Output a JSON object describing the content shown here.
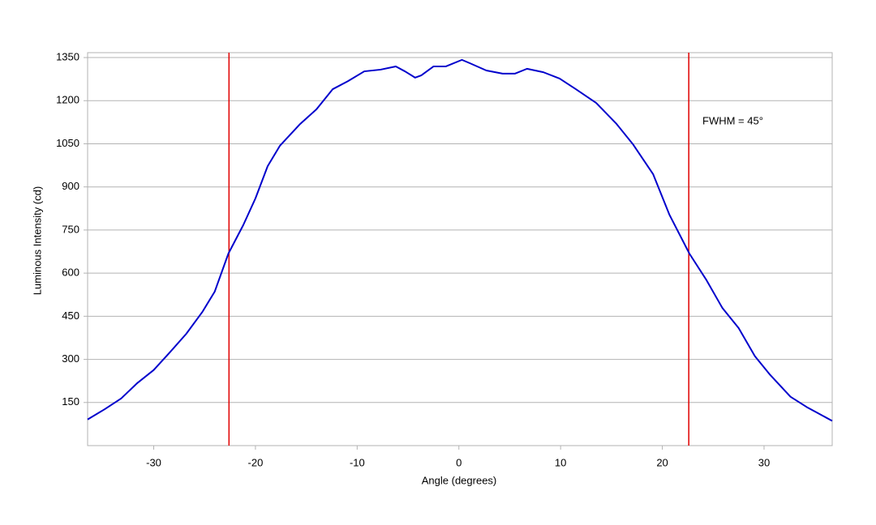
{
  "chart_data": {
    "type": "line",
    "xlabel": "Angle (degrees)",
    "ylabel": "Luminous Intensity (cd)",
    "annotation": "FWHM = 45°",
    "xlim": [
      -36.5,
      36.7
    ],
    "ylim": [
      0,
      1367
    ],
    "xticks": [
      -30,
      -20,
      -10,
      0,
      10,
      20,
      30
    ],
    "yticks": [
      150,
      300,
      450,
      600,
      750,
      900,
      1050,
      1200,
      1350
    ],
    "grid": true,
    "vlines": {
      "color": "#e00000",
      "values": [
        -22.6,
        22.6
      ]
    },
    "series": [
      {
        "color": "#0000cc",
        "x": [
          -36.5,
          -34.8,
          -33.2,
          -31.6,
          -30,
          -28.4,
          -26.8,
          -25.2,
          -24,
          -22.66,
          -21.2,
          -20,
          -18.8,
          -17.6,
          -15.6,
          -14,
          -12.4,
          -10.9,
          -9.3,
          -7.7,
          -6.2,
          -5.3,
          -4.3,
          -3.7,
          -2.5,
          -1.3,
          0.3,
          1.1,
          2.7,
          4.3,
          5.5,
          6.7,
          8.3,
          9.9,
          11.5,
          13.5,
          15.5,
          17.1,
          19.1,
          20.7,
          22.66,
          24.3,
          25.9,
          27.5,
          29.1,
          30.6,
          32.6,
          34.2,
          36.7
        ],
        "values": [
          91,
          127,
          164,
          218,
          263,
          325,
          389,
          466,
          536,
          668,
          767,
          860,
          972,
          1043,
          1119,
          1170,
          1240,
          1268,
          1302,
          1308,
          1319,
          1302,
          1280,
          1288,
          1319,
          1319,
          1342,
          1330,
          1305,
          1294,
          1294,
          1311,
          1299,
          1277,
          1240,
          1192,
          1119,
          1049,
          944,
          803,
          668,
          578,
          479,
          409,
          311,
          246,
          170,
          134,
          86
        ]
      }
    ]
  }
}
